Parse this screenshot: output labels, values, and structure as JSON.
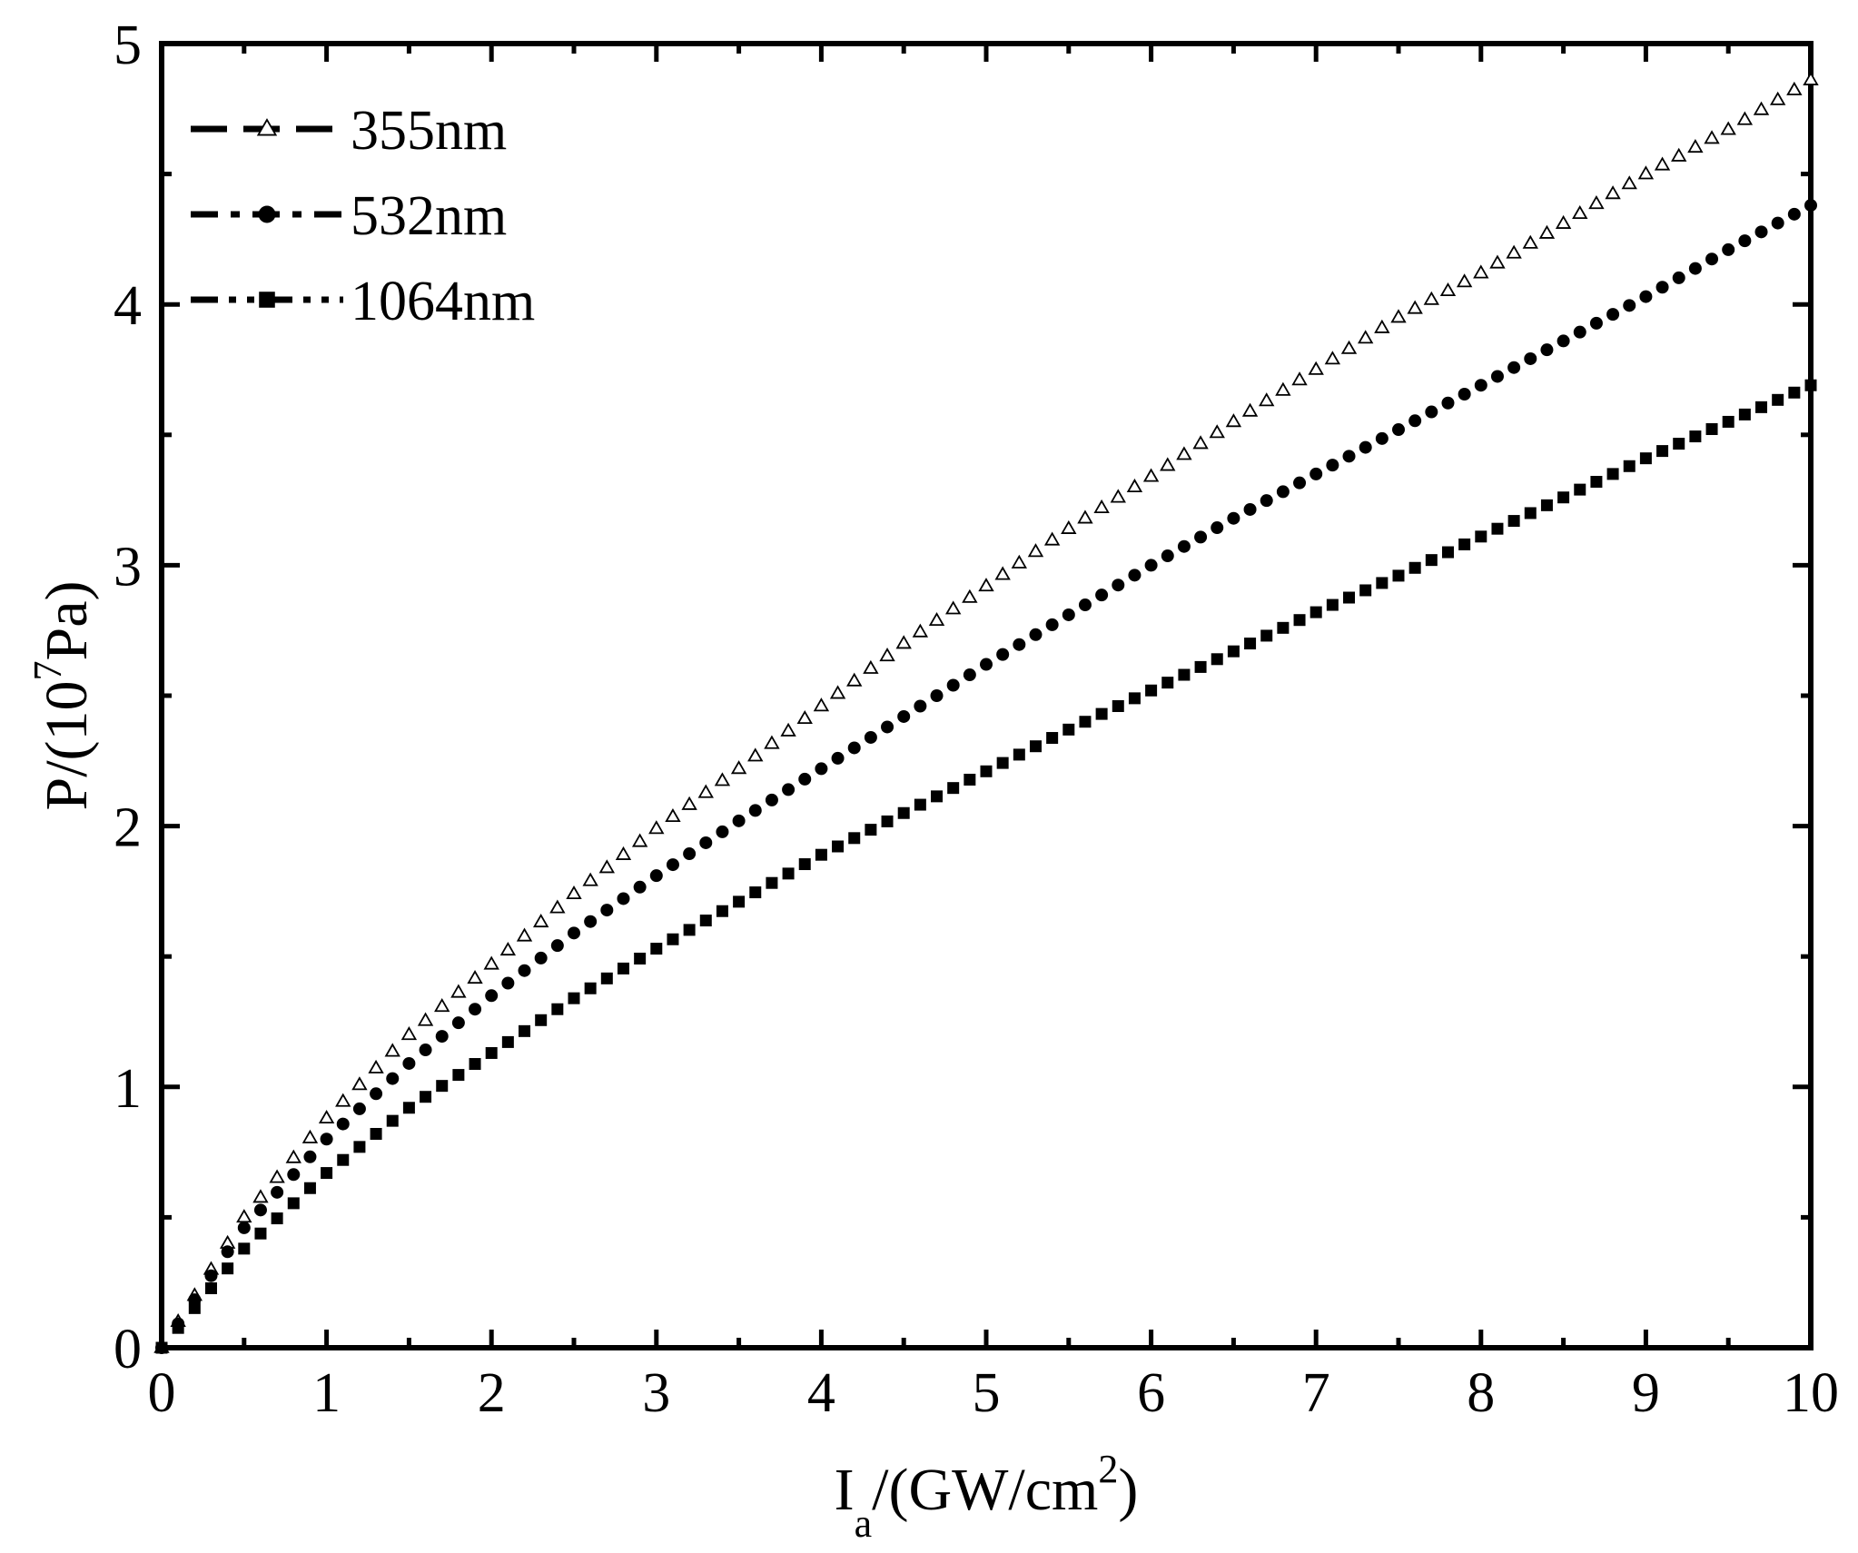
{
  "chart_data": {
    "type": "scatter",
    "title": "",
    "xlabel": {
      "main": "I",
      "sub": "a",
      "rest": "/(GW/cm",
      "sup": "2",
      "close": ")"
    },
    "ylabel": {
      "pre": "P/(10",
      "sup": "7",
      "post": "Pa)"
    },
    "xlim": [
      0,
      10
    ],
    "ylim": [
      0,
      5
    ],
    "x_ticks": [
      "0",
      "1",
      "2",
      "3",
      "4",
      "5",
      "6",
      "7",
      "8",
      "9",
      "10"
    ],
    "y_ticks": [
      "0",
      "1",
      "2",
      "3",
      "4",
      "5"
    ],
    "grid": false,
    "legend_position": "top-left",
    "x": [
      0,
      0.5,
      1,
      1.5,
      2,
      2.5,
      3,
      3.5,
      4,
      4.5,
      5,
      5.5,
      6,
      6.5,
      7,
      7.5,
      8,
      8.5,
      9,
      9.5,
      10
    ],
    "series": [
      {
        "name": "355nm",
        "marker": "open-triangle",
        "color": "#000000",
        "values": [
          0,
          0.5,
          0.88,
          1.2,
          1.47,
          1.74,
          1.99,
          2.22,
          2.46,
          2.7,
          2.92,
          3.14,
          3.34,
          3.55,
          3.75,
          3.95,
          4.12,
          4.31,
          4.5,
          4.67,
          4.86
        ]
      },
      {
        "name": "532nm",
        "marker": "filled-circle",
        "color": "#000000",
        "values": [
          0,
          0.46,
          0.8,
          1.09,
          1.35,
          1.59,
          1.81,
          2.02,
          2.22,
          2.42,
          2.62,
          2.81,
          3.0,
          3.18,
          3.35,
          3.52,
          3.69,
          3.86,
          4.03,
          4.21,
          4.38
        ]
      },
      {
        "name": "1064nm",
        "marker": "filled-square",
        "color": "#000000",
        "values": [
          0,
          0.38,
          0.67,
          0.92,
          1.13,
          1.34,
          1.53,
          1.71,
          1.89,
          2.05,
          2.21,
          2.37,
          2.52,
          2.67,
          2.82,
          2.96,
          3.11,
          3.26,
          3.41,
          3.55,
          3.69
        ]
      }
    ]
  }
}
